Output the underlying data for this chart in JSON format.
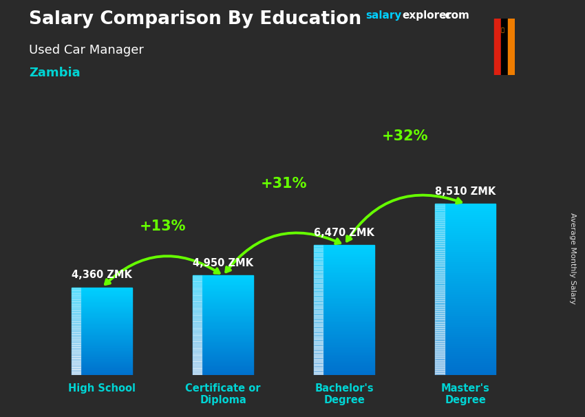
{
  "title": "Salary Comparison By Education",
  "subtitle": "Used Car Manager",
  "country": "Zambia",
  "ylabel": "Average Monthly Salary",
  "categories": [
    "High School",
    "Certificate or\nDiploma",
    "Bachelor's\nDegree",
    "Master's\nDegree"
  ],
  "values": [
    4360,
    4950,
    6470,
    8510
  ],
  "value_labels": [
    "4,360 ZMK",
    "4,950 ZMK",
    "6,470 ZMK",
    "8,510 ZMK"
  ],
  "pct_labels": [
    "+13%",
    "+31%",
    "+32%"
  ],
  "bar_color_top": "#00cfff",
  "bar_color_mid": "#00aaee",
  "bar_color_bottom": "#007acc",
  "background_color": "#2a2a2a",
  "title_color": "#ffffff",
  "subtitle_color": "#ffffff",
  "country_color": "#00d4d4",
  "value_label_color": "#ffffff",
  "pct_color": "#66ff00",
  "arrow_color": "#66ff00",
  "watermark_salary_color": "#00cfff",
  "watermark_rest_color": "#ffffff",
  "ylim": [
    0,
    12000
  ],
  "bar_width": 0.5,
  "x_positions": [
    0,
    1,
    2,
    3
  ],
  "flag_green": "#198a00",
  "flag_red": "#de2010",
  "flag_black": "#000000",
  "flag_orange": "#ef7d00"
}
